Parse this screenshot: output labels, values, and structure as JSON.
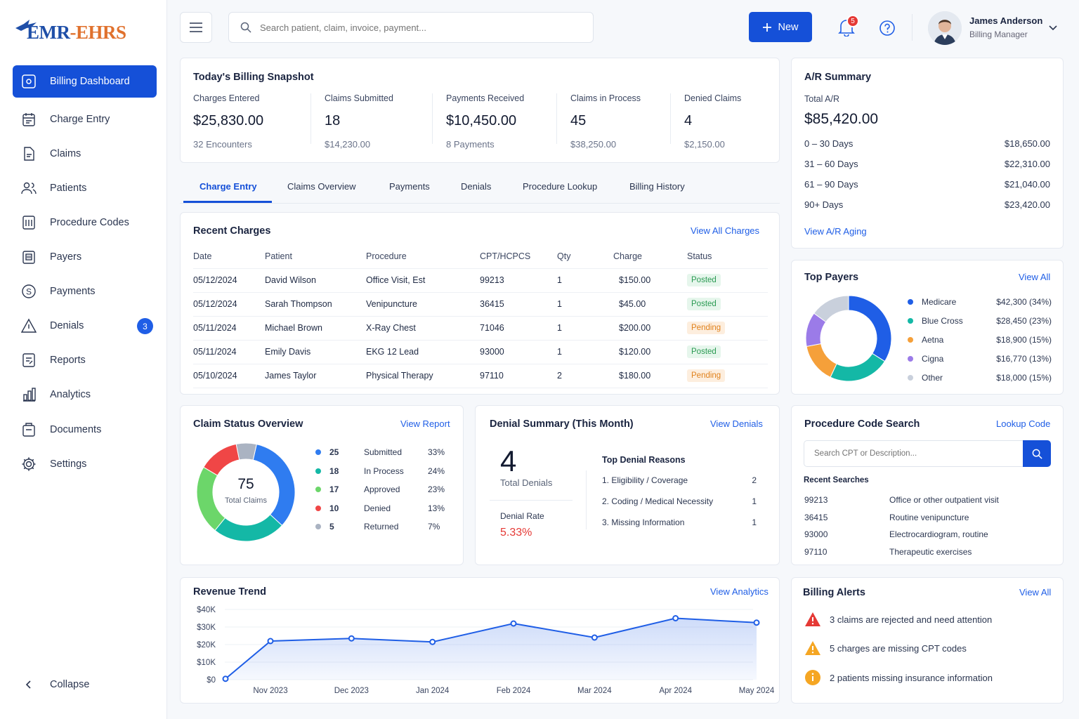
{
  "app": {
    "logo_prefix": "EMR",
    "logo_suffix": "-EHRS"
  },
  "sidebar": {
    "items": [
      {
        "label": "Billing Dashboard",
        "icon": "dashboard-icon"
      },
      {
        "label": "Charge Entry",
        "icon": "calendar-icon"
      },
      {
        "label": "Claims",
        "icon": "document-icon"
      },
      {
        "label": "Patients",
        "icon": "users-icon"
      },
      {
        "label": "Procedure Codes",
        "icon": "code-list-icon"
      },
      {
        "label": "Payers",
        "icon": "building-icon"
      },
      {
        "label": "Payments",
        "icon": "dollar-icon"
      },
      {
        "label": "Denials",
        "icon": "warning-icon",
        "badge": "3"
      },
      {
        "label": "Reports",
        "icon": "report-icon"
      },
      {
        "label": "Analytics",
        "icon": "analytics-icon"
      },
      {
        "label": "Documents",
        "icon": "folder-icon"
      },
      {
        "label": "Settings",
        "icon": "gear-icon"
      }
    ],
    "collapse_label": "Collapse"
  },
  "header": {
    "search_placeholder": "Search patient, claim, invoice, payment...",
    "new_label": "New",
    "notification_count": "5",
    "user_name": "James Anderson",
    "user_role": "Billing Manager"
  },
  "snapshot": {
    "title": "Today's Billing Snapshot",
    "cols": [
      {
        "label": "Charges Entered",
        "value": "$25,830.00",
        "sub": "32 Encounters"
      },
      {
        "label": "Claims Submitted",
        "value": "18",
        "sub": "$14,230.00"
      },
      {
        "label": "Payments Received",
        "value": "$10,450.00",
        "sub": "8 Payments"
      },
      {
        "label": "Claims in Process",
        "value": "45",
        "sub": "$38,250.00"
      },
      {
        "label": "Denied Claims",
        "value": "4",
        "sub": "$2,150.00"
      }
    ]
  },
  "ar": {
    "title": "A/R Summary",
    "total_label": "Total A/R",
    "total_value": "$85,420.00",
    "rows": [
      {
        "label": "0 – 30 Days",
        "value": "$18,650.00"
      },
      {
        "label": "31 – 60 Days",
        "value": "$22,310.00"
      },
      {
        "label": "61 – 90 Days",
        "value": "$21,040.00"
      },
      {
        "label": "90+ Days",
        "value": "$23,420.00"
      }
    ],
    "link": "View A/R Aging"
  },
  "tabs": [
    "Charge Entry",
    "Claims Overview",
    "Payments",
    "Denials",
    "Procedure Lookup",
    "Billing History"
  ],
  "recent_charges": {
    "title": "Recent Charges",
    "link": "View All Charges",
    "headers": [
      "Date",
      "Patient",
      "Procedure",
      "CPT/HCPCS",
      "Qty",
      "Charge",
      "Status"
    ],
    "rows": [
      {
        "date": "05/12/2024",
        "patient": "David Wilson",
        "procedure": "Office Visit, Est",
        "cpt": "99213",
        "qty": "1",
        "charge": "$150.00",
        "status": "Posted"
      },
      {
        "date": "05/12/2024",
        "patient": "Sarah Thompson",
        "procedure": "Venipuncture",
        "cpt": "36415",
        "qty": "1",
        "charge": "$45.00",
        "status": "Posted"
      },
      {
        "date": "05/11/2024",
        "patient": "Michael Brown",
        "procedure": "X-Ray Chest",
        "cpt": "71046",
        "qty": "1",
        "charge": "$200.00",
        "status": "Pending"
      },
      {
        "date": "05/11/2024",
        "patient": "Emily Davis",
        "procedure": "EKG 12 Lead",
        "cpt": "93000",
        "qty": "1",
        "charge": "$120.00",
        "status": "Posted"
      },
      {
        "date": "05/10/2024",
        "patient": "James Taylor",
        "procedure": "Physical Therapy",
        "cpt": "97110",
        "qty": "2",
        "charge": "$180.00",
        "status": "Pending"
      }
    ]
  },
  "top_payers": {
    "title": "Top Payers",
    "link": "View All",
    "items": [
      {
        "name": "Medicare",
        "value": "$42,300 (34%)",
        "color": "#1f5ee6",
        "pct": 34
      },
      {
        "name": "Blue Cross",
        "value": "$28,450 (23%)",
        "color": "#14b8a6",
        "pct": 23
      },
      {
        "name": "Aetna",
        "value": "$18,900 (15%)",
        "color": "#f5a03a",
        "pct": 15
      },
      {
        "name": "Cigna",
        "value": "$16,770 (13%)",
        "color": "#9b7be8",
        "pct": 13
      },
      {
        "name": "Other",
        "value": "$18,000 (15%)",
        "color": "#c9d0dc",
        "pct": 15
      }
    ]
  },
  "claim_status": {
    "title": "Claim Status Overview",
    "link": "View Report",
    "total": "75",
    "total_label": "Total Claims",
    "items": [
      {
        "count": "25",
        "label": "Submitted",
        "pct": "33%",
        "color": "#2f7cf0",
        "value": 25
      },
      {
        "count": "18",
        "label": "In Process",
        "pct": "24%",
        "color": "#14b8a6",
        "value": 18
      },
      {
        "count": "17",
        "label": "Approved",
        "pct": "23%",
        "color": "#6cd66a",
        "value": 17
      },
      {
        "count": "10",
        "label": "Denied",
        "pct": "13%",
        "color": "#f04646",
        "value": 10
      },
      {
        "count": "5",
        "label": "Returned",
        "pct": "7%",
        "color": "#aab3c2",
        "value": 5
      }
    ]
  },
  "denial_summary": {
    "title": "Denial Summary (This Month)",
    "link": "View Denials",
    "total": "4",
    "total_label": "Total Denials",
    "rate_label": "Denial Rate",
    "rate": "5.33%",
    "reasons_title": "Top Denial Reasons",
    "reasons": [
      {
        "label": "1.  Eligibility / Coverage",
        "count": "2"
      },
      {
        "label": "2.  Coding / Medical Necessity",
        "count": "1"
      },
      {
        "label": "3.  Missing Information",
        "count": "1"
      }
    ]
  },
  "procedure_search": {
    "title": "Procedure Code Search",
    "link": "Lookup Code",
    "placeholder": "Search CPT or Description...",
    "recent_label": "Recent Searches",
    "recent": [
      {
        "code": "99213",
        "desc": "Office or other outpatient visit"
      },
      {
        "code": "36415",
        "desc": "Routine venipuncture"
      },
      {
        "code": "93000",
        "desc": "Electrocardiogram, routine"
      },
      {
        "code": "97110",
        "desc": "Therapeutic exercises"
      }
    ]
  },
  "revenue_trend": {
    "title": "Revenue Trend",
    "link": "View Analytics"
  },
  "chart_data": {
    "type": "area",
    "title": "Revenue Trend",
    "x": [
      "Nov 2023",
      "Dec 2023",
      "Jan 2024",
      "Feb 2024",
      "Mar 2024",
      "Apr 2024",
      "May 2024"
    ],
    "y_ticks": [
      "$40K",
      "$30K",
      "$20K",
      "$10K",
      "$0"
    ],
    "ylim": [
      0,
      40000
    ],
    "points": [
      {
        "x": "Nov 2023",
        "y": 500
      },
      {
        "x": "Nov 2023",
        "y": 22000
      },
      {
        "x": "Dec 2023",
        "y": 23500
      },
      {
        "x": "Jan 2024",
        "y": 21500
      },
      {
        "x": "Feb 2024",
        "y": 32000
      },
      {
        "x": "Mar 2024",
        "y": 24000
      },
      {
        "x": "Apr 2024",
        "y": 35000
      },
      {
        "x": "May 2024",
        "y": 32500
      }
    ],
    "color": "#1f5ee6"
  },
  "billing_alerts": {
    "title": "Billing Alerts",
    "link": "View All",
    "items": [
      {
        "text": "3 claims are rejected and need attention",
        "color": "#e53935",
        "icon": "alert-triangle-red-icon"
      },
      {
        "text": "5 charges are missing CPT codes",
        "color": "#f5a623",
        "icon": "alert-triangle-orange-icon"
      },
      {
        "text": "2 patients missing insurance information",
        "color": "#f5a623",
        "icon": "info-circle-icon"
      }
    ]
  }
}
